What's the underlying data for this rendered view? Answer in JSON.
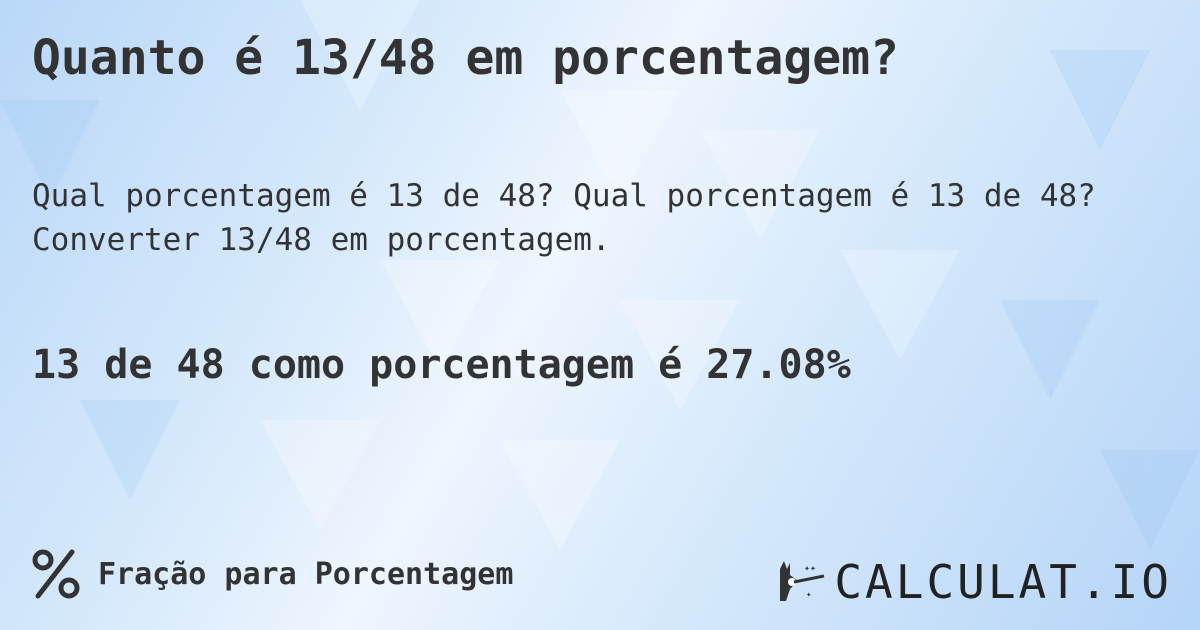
{
  "title": "Quanto é 13/48 em porcentagem?",
  "description": "Qual porcentagem é 13 de 48? Qual porcentagem é 13 de 48? Converter 13/48 em porcentagem.",
  "result": "13 de 48 como porcentagem é 27.08%",
  "footer": {
    "icon": "percent-icon",
    "label": "Fração para Porcentagem"
  },
  "logo": {
    "text": "CALCULAT.IO",
    "icon": "magic-hand-wand-icon"
  },
  "colors": {
    "text": "#333333",
    "background_light": "#eef6fe",
    "background_blue": "#b9d8f8"
  }
}
